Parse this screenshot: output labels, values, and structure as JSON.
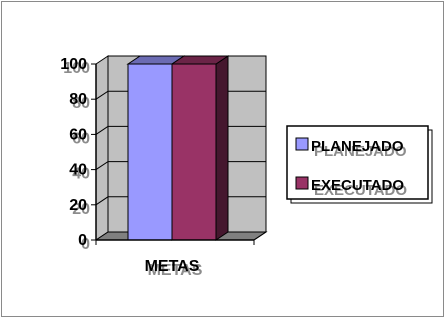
{
  "chart_data": {
    "type": "bar",
    "style": "3d-clustered-column",
    "categories": [
      "METAS"
    ],
    "series": [
      {
        "name": "PLANEJADO",
        "values": [
          100
        ],
        "color": "#9999ff"
      },
      {
        "name": "EXECUTADO",
        "values": [
          100
        ],
        "color": "#993366"
      }
    ],
    "y_ticks": [
      "0",
      "20",
      "40",
      "60",
      "80",
      "100"
    ],
    "ylim": [
      0,
      100
    ],
    "grid": true,
    "legend_position": "right",
    "wall_color": "#c0c0c0",
    "floor_color": "#808080"
  }
}
